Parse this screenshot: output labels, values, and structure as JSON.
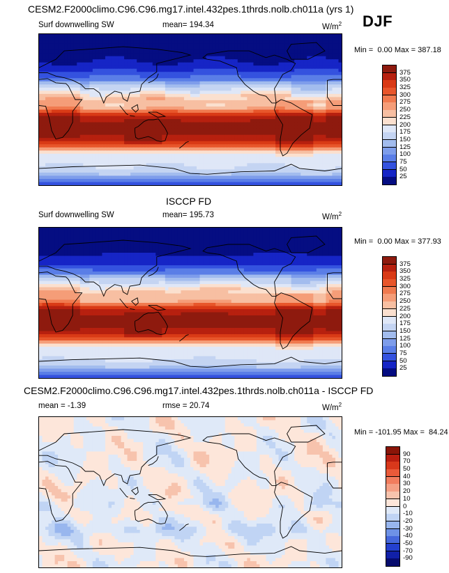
{
  "chart_data": [
    {
      "type": "heatmap",
      "title": "CESM2.F2000climo.C96.C96.mg17.intel.432pes.1thrds.nolb.ch011a (yrs 1)",
      "left_label": "Surf downwelling SW",
      "center_label": "mean= 194.34",
      "units": "W/m",
      "units_sup": "2",
      "range": {
        "min_label": "Min =",
        "min": "0.00",
        "max_label": "Max =",
        "max": "387.18"
      },
      "colorbar_levels": [
        "375",
        "350",
        "325",
        "300",
        "275",
        "250",
        "225",
        "200",
        "175",
        "150",
        "125",
        "100",
        "75",
        "50",
        "25"
      ],
      "colorbar_colors": [
        "#8e1a0e",
        "#b7200f",
        "#d93a16",
        "#e8562b",
        "#f07a4f",
        "#f59d78",
        "#f7bfa2",
        "#fbe0cf",
        "#dfe7f7",
        "#c4d4f2",
        "#a2bcee",
        "#7e9deb",
        "#5a7ee7",
        "#3452df",
        "#1625c6",
        "#050d82"
      ],
      "field": "model"
    },
    {
      "type": "heatmap",
      "title": "ISCCP FD",
      "left_label": "Surf downwelling SW",
      "center_label": "mean= 195.73",
      "units": "W/m",
      "units_sup": "2",
      "range": {
        "min_label": "Min =",
        "min": "0.00",
        "max_label": "Max =",
        "max": "377.93"
      },
      "colorbar_levels": [
        "375",
        "350",
        "325",
        "300",
        "275",
        "250",
        "225",
        "200",
        "175",
        "150",
        "125",
        "100",
        "75",
        "50",
        "25"
      ],
      "colorbar_colors": [
        "#8e1a0e",
        "#b7200f",
        "#d93a16",
        "#e8562b",
        "#f07a4f",
        "#f59d78",
        "#f7bfa2",
        "#fbe0cf",
        "#dfe7f7",
        "#c4d4f2",
        "#a2bcee",
        "#7e9deb",
        "#5a7ee7",
        "#3452df",
        "#1625c6",
        "#050d82"
      ],
      "field": "obs"
    },
    {
      "type": "heatmap",
      "title": "CESM2.F2000climo.C96.C96.mg17.intel.432pes.1thrds.nolb.ch011a - ISCCP FD",
      "left_label": "mean =  -1.39",
      "center_label": "rmse =  20.74",
      "units": "W/m",
      "units_sup": "2",
      "range": {
        "min_label": "Min =",
        "min": "-101.95",
        "max_label": "Max =",
        "max": "84.24"
      },
      "colorbar_levels": [
        "90",
        "70",
        "50",
        "40",
        "30",
        "20",
        "10",
        "0",
        "-10",
        "-20",
        "-30",
        "-40",
        "-50",
        "-70",
        "-90"
      ],
      "colorbar_colors": [
        "#8a1508",
        "#b91e10",
        "#d8381b",
        "#ea5a39",
        "#f27d5e",
        "#f5a085",
        "#f7c3ad",
        "#fde6da",
        "#dfe9f8",
        "#c0d4f4",
        "#98b6ee",
        "#6e92e6",
        "#4668dc",
        "#2440cf",
        "#1120a8",
        "#070c6e"
      ],
      "field": "diff"
    }
  ],
  "season": "DJF"
}
